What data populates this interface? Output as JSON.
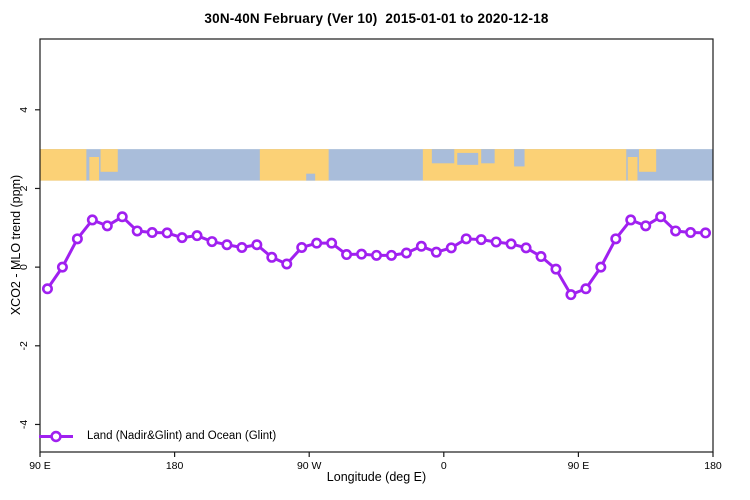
{
  "title": "30N-40N February (Ver 10)  2015-01-01 to 2020-12-18",
  "chart_data": {
    "type": "line",
    "title": "30N-40N February (Ver 10)  2015-01-01 to 2020-12-18",
    "xlabel": "Longitude (deg E)",
    "ylabel": "XCO2 - MLO trend (ppm)",
    "xlim": [
      90,
      540
    ],
    "ylim": [
      -4.7,
      5.8
    ],
    "grid": false,
    "x_ticks": [
      {
        "pos": 90,
        "label": "90 E"
      },
      {
        "pos": 180,
        "label": "180"
      },
      {
        "pos": 270,
        "label": "90 W"
      },
      {
        "pos": 360,
        "label": "0"
      },
      {
        "pos": 450,
        "label": "90 E"
      },
      {
        "pos": 540,
        "label": "180"
      }
    ],
    "y_ticks": [
      {
        "pos": 4,
        "label": "4"
      },
      {
        "pos": 2,
        "label": "2"
      },
      {
        "pos": 0,
        "label": "0"
      },
      {
        "pos": -2,
        "label": "-2"
      },
      {
        "pos": -4,
        "label": "-4"
      }
    ],
    "legend": {
      "position": "bottom-left",
      "label": "Land (Nadir&Glint) and Ocean (Glint)"
    },
    "series": [
      {
        "name": "Land (Nadir&Glint) and Ocean (Glint)",
        "color": "#A020F0",
        "marker": "open-circle",
        "x": [
          95,
          105,
          115,
          125,
          135,
          145,
          155,
          165,
          175,
          185,
          195,
          205,
          215,
          225,
          235,
          245,
          255,
          265,
          275,
          285,
          295,
          305,
          315,
          325,
          335,
          345,
          355,
          365,
          375,
          385,
          395,
          405,
          415,
          425,
          435,
          445,
          455,
          465,
          475,
          485,
          495,
          505,
          515,
          525,
          535
        ],
        "values": [
          -0.55,
          0.0,
          0.72,
          1.2,
          1.05,
          1.28,
          0.92,
          0.88,
          0.87,
          0.75,
          0.8,
          0.65,
          0.57,
          0.5,
          0.57,
          0.25,
          0.08,
          0.5,
          0.61,
          0.61,
          0.32,
          0.33,
          0.3,
          0.3,
          0.36,
          0.53,
          0.38,
          0.49,
          0.72,
          0.7,
          0.64,
          0.59,
          0.49,
          0.27,
          -0.05,
          -0.7,
          -0.55,
          0.0,
          0.72,
          1.2,
          1.05,
          1.28,
          0.92,
          0.88,
          0.87
        ]
      }
    ],
    "map_band": {
      "description": "world coastline strip for 30N-40N drawn across the longitude axis",
      "y_top": 3.0,
      "y_bottom": 2.2,
      "ocean_color": "#A9BDDA",
      "land_color": "#FBD176",
      "segments": [
        {
          "from": 90,
          "to": 121,
          "type": "land",
          "y0": 0,
          "y1": 1
        },
        {
          "from": 123,
          "to": 129.5,
          "type": "land",
          "y0": 0.25,
          "y1": 1
        },
        {
          "from": 130.5,
          "to": 142,
          "type": "land",
          "y0": 0,
          "y1": 0.72
        },
        {
          "from": 237,
          "to": 283,
          "type": "land",
          "y0": 0,
          "y1": 1
        },
        {
          "from": 268,
          "to": 274,
          "type": "ocean",
          "y0": 0.78,
          "y1": 1
        },
        {
          "from": 346,
          "to": 482,
          "type": "land",
          "y0": 0,
          "y1": 1
        },
        {
          "from": 352,
          "to": 367,
          "type": "ocean",
          "y0": 0,
          "y1": 0.45
        },
        {
          "from": 369,
          "to": 383,
          "type": "ocean",
          "y0": 0.12,
          "y1": 0.5
        },
        {
          "from": 385,
          "to": 394,
          "type": "ocean",
          "y0": 0,
          "y1": 0.45
        },
        {
          "from": 407,
          "to": 414,
          "type": "ocean",
          "y0": 0,
          "y1": 0.55
        },
        {
          "from": 483,
          "to": 489.5,
          "type": "land",
          "y0": 0.25,
          "y1": 1
        },
        {
          "from": 490.5,
          "to": 502,
          "type": "land",
          "y0": 0,
          "y1": 0.72
        }
      ]
    }
  }
}
